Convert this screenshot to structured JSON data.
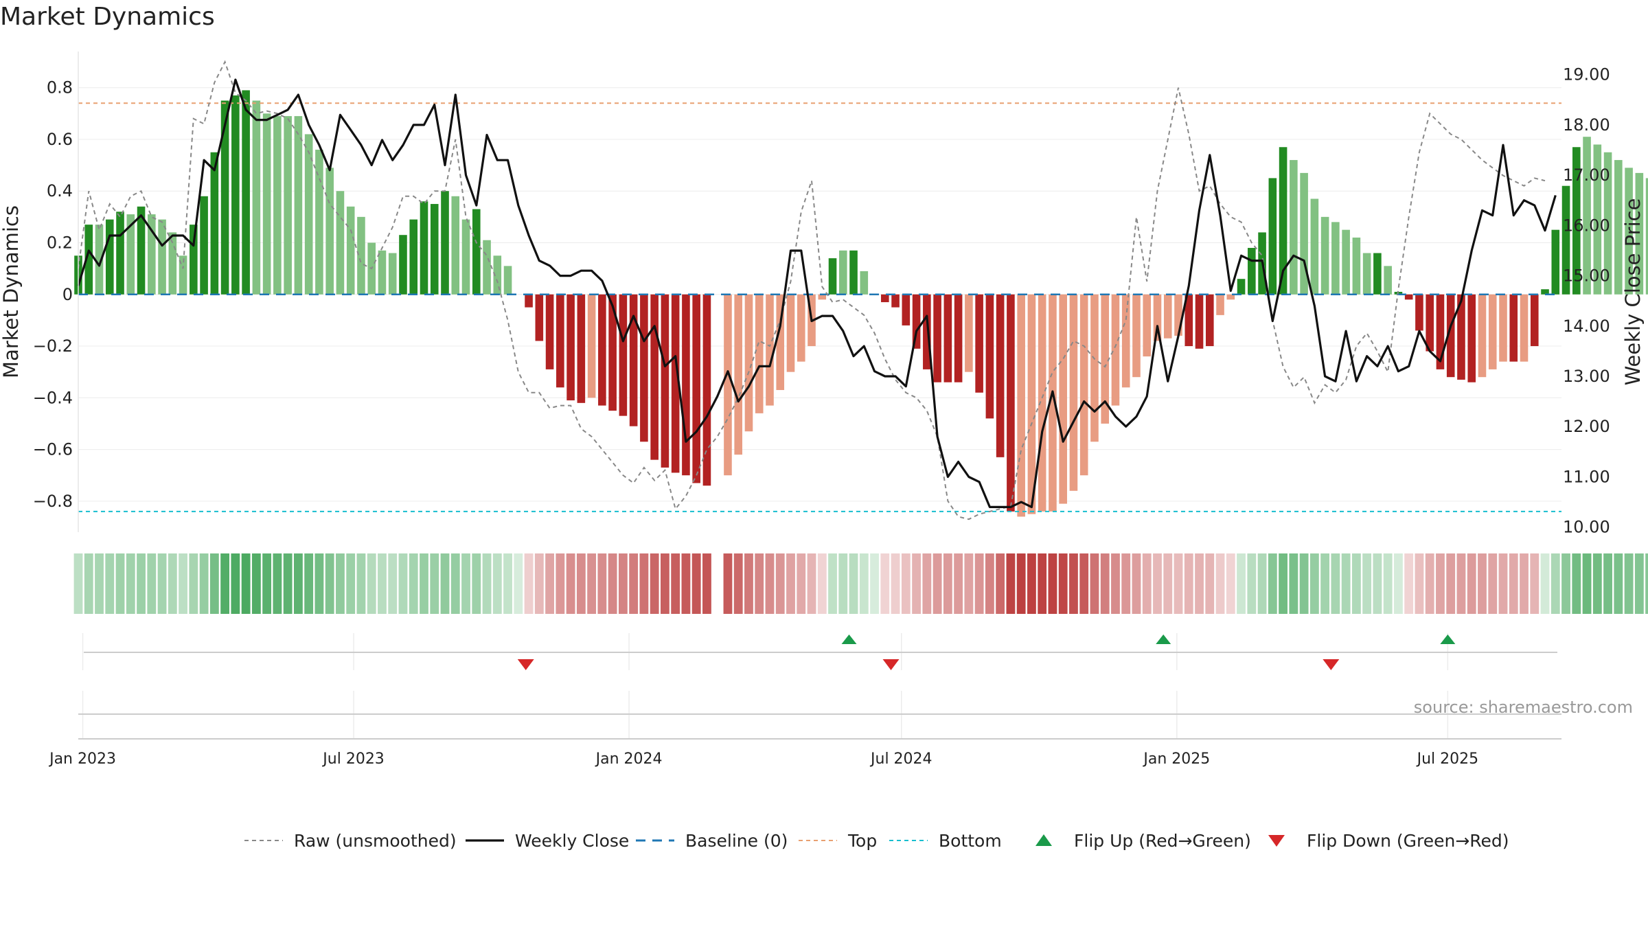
{
  "title": "Market Dynamics",
  "source_note": "source: sharemaestro.com",
  "colors": {
    "strong_green": "#228b22",
    "light_green": "#82c182",
    "strong_red": "#b22222",
    "light_red": "#e89c82",
    "raw_line": "#888888",
    "close_line": "#111111",
    "baseline": "#1f77b4",
    "top": "#e8a070",
    "bottom": "#17becf",
    "flip_up": "#1a9a4a",
    "flip_down": "#d62728"
  },
  "chart_data": {
    "type": "bar",
    "title": "Market Dynamics",
    "ylabel": "Market Dynamics",
    "y2label": "Weekly Close Price",
    "ylim": [
      -0.92,
      0.94
    ],
    "y2lim": [
      9.9,
      19.46
    ],
    "x_range": [
      "2022-12-29",
      "2025-09-15"
    ],
    "yticks": [
      {
        "value": 0.8,
        "label": "0.8"
      },
      {
        "value": 0.6,
        "label": "0.6"
      },
      {
        "value": 0.4,
        "label": "0.4"
      },
      {
        "value": 0.2,
        "label": "0.2"
      },
      {
        "value": 0.0,
        "label": "0"
      },
      {
        "value": -0.2,
        "label": "−0.2"
      },
      {
        "value": -0.4,
        "label": "−0.4"
      },
      {
        "value": -0.6,
        "label": "−0.6"
      },
      {
        "value": -0.8,
        "label": "−0.8"
      }
    ],
    "y2ticks": [
      {
        "value": 19,
        "label": "19.00"
      },
      {
        "value": 18,
        "label": "18.00"
      },
      {
        "value": 17,
        "label": "17.00"
      },
      {
        "value": 16,
        "label": "16.00"
      },
      {
        "value": 15,
        "label": "15.00"
      },
      {
        "value": 14,
        "label": "14.00"
      },
      {
        "value": 13,
        "label": "13.00"
      },
      {
        "value": 12,
        "label": "12.00"
      },
      {
        "value": 11,
        "label": "11.00"
      },
      {
        "value": 10,
        "label": "10.00"
      }
    ],
    "xticks": [
      {
        "date": "2023-01-01",
        "label": "Jan 2023"
      },
      {
        "date": "2023-07-01",
        "label": "Jul 2023"
      },
      {
        "date": "2024-01-01",
        "label": "Jan 2024"
      },
      {
        "date": "2024-07-01",
        "label": "Jul 2024"
      },
      {
        "date": "2025-01-01",
        "label": "Jan 2025"
      },
      {
        "date": "2025-07-01",
        "label": "Jul 2025"
      }
    ],
    "top_level": 0.74,
    "bottom_level": -0.84,
    "grid": true,
    "legend_position": "bottom-center",
    "week_start": "2022-12-29",
    "bar_values": [
      0.15,
      0.27,
      0.27,
      0.29,
      0.32,
      0.31,
      0.34,
      0.31,
      0.29,
      0.24,
      0.15,
      0.27,
      0.38,
      0.55,
      0.75,
      0.77,
      0.79,
      0.75,
      0.7,
      0.69,
      0.69,
      0.69,
      0.62,
      0.56,
      0.49,
      0.4,
      0.34,
      0.3,
      0.2,
      0.17,
      0.16,
      0.23,
      0.29,
      0.36,
      0.35,
      0.4,
      0.38,
      0.29,
      0.33,
      0.21,
      0.15,
      0.11,
      0,
      -0.05,
      -0.18,
      -0.29,
      -0.36,
      -0.41,
      -0.42,
      -0.4,
      -0.43,
      -0.45,
      -0.47,
      -0.51,
      -0.57,
      -0.64,
      -0.67,
      -0.69,
      -0.7,
      -0.73,
      -0.74,
      0,
      -0.7,
      -0.62,
      -0.53,
      -0.46,
      -0.43,
      -0.37,
      -0.3,
      -0.26,
      -0.2,
      -0.02,
      0.14,
      0.17,
      0.17,
      0.09,
      0,
      -0.03,
      -0.05,
      -0.12,
      -0.21,
      -0.29,
      -0.34,
      -0.34,
      -0.34,
      -0.3,
      -0.38,
      -0.48,
      -0.63,
      -0.84,
      -0.86,
      -0.85,
      -0.84,
      -0.84,
      -0.81,
      -0.76,
      -0.7,
      -0.57,
      -0.5,
      -0.43,
      -0.36,
      -0.32,
      -0.24,
      -0.18,
      -0.17,
      -0.16,
      -0.2,
      -0.21,
      -0.2,
      -0.08,
      -0.02,
      0.06,
      0.18,
      0.24,
      0.45,
      0.57,
      0.52,
      0.47,
      0.37,
      0.3,
      0.28,
      0.25,
      0.22,
      0.16,
      0.16,
      0.11,
      0.01,
      -0.02,
      -0.14,
      -0.22,
      -0.29,
      -0.32,
      -0.33,
      -0.34,
      -0.32,
      -0.29,
      -0.26,
      -0.26,
      -0.26,
      -0.2,
      0.02,
      0.25,
      0.42,
      0.57,
      0.61,
      0.58,
      0.55,
      0.52,
      0.49,
      0.47,
      0.45,
      0.43,
      0.41
    ],
    "bar_strength": [
      "strong",
      "strong",
      "light",
      "strong",
      "strong",
      "light",
      "strong",
      "light",
      "light",
      "light",
      "light",
      "strong",
      "strong",
      "strong",
      "strong",
      "strong",
      "strong",
      "light",
      "light",
      "light",
      "light",
      "light",
      "light",
      "light",
      "light",
      "light",
      "light",
      "light",
      "light",
      "light",
      "light",
      "strong",
      "strong",
      "strong",
      "strong",
      "strong",
      "light",
      "light",
      "strong",
      "light",
      "light",
      "light",
      "light",
      "strong",
      "strong",
      "strong",
      "strong",
      "strong",
      "strong",
      "light",
      "strong",
      "strong",
      "strong",
      "strong",
      "strong",
      "strong",
      "strong",
      "strong",
      "strong",
      "strong",
      "strong",
      "light",
      "light",
      "light",
      "light",
      "light",
      "light",
      "light",
      "light",
      "light",
      "light",
      "light",
      "strong",
      "light",
      "strong",
      "light",
      "light",
      "strong",
      "strong",
      "strong",
      "strong",
      "strong",
      "strong",
      "strong",
      "strong",
      "light",
      "strong",
      "strong",
      "strong",
      "strong",
      "light",
      "light",
      "light",
      "light",
      "light",
      "light",
      "light",
      "light",
      "light",
      "light",
      "light",
      "light",
      "light",
      "light",
      "light",
      "light",
      "strong",
      "strong",
      "strong",
      "light",
      "light",
      "strong",
      "strong",
      "strong",
      "strong",
      "strong",
      "light",
      "light",
      "light",
      "light",
      "light",
      "light",
      "light",
      "light",
      "strong",
      "light",
      "strong",
      "strong",
      "strong",
      "strong",
      "strong",
      "strong",
      "strong",
      "strong",
      "light",
      "light",
      "light",
      "strong",
      "light",
      "strong",
      "strong",
      "strong",
      "strong",
      "strong",
      "light",
      "light",
      "light",
      "light",
      "light",
      "light",
      "light",
      "light"
    ],
    "raw_values": [
      0.1,
      0.4,
      0.25,
      0.35,
      0.3,
      0.38,
      0.4,
      0.3,
      0.28,
      0.2,
      0.1,
      0.68,
      0.66,
      0.82,
      0.9,
      0.78,
      0.75,
      0.7,
      0.71,
      0.7,
      0.68,
      0.62,
      0.55,
      0.45,
      0.35,
      0.3,
      0.25,
      0.12,
      0.1,
      0.18,
      0.26,
      0.38,
      0.38,
      0.35,
      0.4,
      0.4,
      0.6,
      0.3,
      0.2,
      0.15,
      0.05,
      -0.1,
      -0.3,
      -0.38,
      -0.38,
      -0.44,
      -0.43,
      -0.43,
      -0.52,
      -0.55,
      -0.6,
      -0.65,
      -0.7,
      -0.73,
      -0.67,
      -0.72,
      -0.68,
      -0.83,
      -0.78,
      -0.7,
      -0.6,
      -0.55,
      -0.48,
      -0.4,
      -0.3,
      -0.18,
      -0.2,
      -0.1,
      0.05,
      0.32,
      0.44,
      0.03,
      -0.03,
      -0.02,
      -0.05,
      -0.08,
      -0.15,
      -0.25,
      -0.33,
      -0.38,
      -0.4,
      -0.45,
      -0.55,
      -0.8,
      -0.86,
      -0.87,
      -0.85,
      -0.84,
      -0.83,
      -0.82,
      -0.6,
      -0.5,
      -0.4,
      -0.3,
      -0.25,
      -0.18,
      -0.2,
      -0.25,
      -0.28,
      -0.2,
      -0.1,
      0.3,
      0.05,
      0.4,
      0.6,
      0.8,
      0.62,
      0.4,
      0.42,
      0.35,
      0.3,
      0.28,
      0.2,
      0.15,
      -0.1,
      -0.28,
      -0.36,
      -0.32,
      -0.42,
      -0.35,
      -0.38,
      -0.33,
      -0.2,
      -0.15,
      -0.22,
      -0.3,
      0.02,
      0.3,
      0.55,
      0.7,
      0.66,
      0.62,
      0.6,
      0.56,
      0.52,
      0.49,
      0.46,
      0.44,
      0.42,
      0.45,
      0.44
    ],
    "close_dates": [
      "2022-12-29",
      "2023-01-05",
      "2023-01-12",
      "2023-01-19",
      "2023-01-26",
      "2023-02-09",
      "2023-02-23",
      "2023-03-02",
      "2023-03-09",
      "2023-03-16",
      "2023-03-23",
      "2023-03-30",
      "2023-04-06",
      "2023-04-13",
      "2023-04-20",
      "2023-04-27",
      "2023-05-04",
      "2023-05-11",
      "2023-05-18",
      "2023-05-25",
      "2023-06-01",
      "2023-06-08",
      "2023-06-15",
      "2023-06-22",
      "2023-06-29",
      "2023-07-06",
      "2023-07-13",
      "2023-07-20",
      "2023-07-27",
      "2023-08-03",
      "2023-08-10",
      "2023-08-17",
      "2023-08-24",
      "2023-08-31",
      "2023-09-07",
      "2023-09-14",
      "2023-09-21",
      "2023-09-28",
      "2023-10-05",
      "2023-10-12",
      "2023-10-19",
      "2023-10-26",
      "2023-11-02",
      "2023-11-09",
      "2023-11-16",
      "2023-11-23",
      "2023-11-30",
      "2023-12-07",
      "2023-12-14",
      "2023-12-21",
      "2023-12-28",
      "2024-01-04",
      "2024-01-11",
      "2024-01-18",
      "2024-01-25",
      "2024-02-01",
      "2024-02-08",
      "2024-02-15",
      "2024-02-22",
      "2024-02-29",
      "2024-03-07",
      "2024-03-14",
      "2024-03-21",
      "2024-03-28",
      "2024-04-04",
      "2024-04-11",
      "2024-04-18",
      "2024-04-25",
      "2024-05-02",
      "2024-05-09",
      "2024-05-16",
      "2024-05-23",
      "2024-05-30",
      "2024-06-06",
      "2024-06-13",
      "2024-06-20",
      "2024-06-27",
      "2024-07-04",
      "2024-07-11",
      "2024-07-18",
      "2024-07-25",
      "2024-08-01",
      "2024-08-08",
      "2024-08-15",
      "2024-08-22",
      "2024-08-29",
      "2024-09-05",
      "2024-09-12",
      "2024-09-19",
      "2024-09-26",
      "2024-10-03",
      "2024-10-10",
      "2024-10-17",
      "2024-10-24",
      "2024-10-31",
      "2024-11-07",
      "2024-11-14",
      "2024-11-21",
      "2024-11-28",
      "2024-12-05",
      "2024-12-12",
      "2024-12-19",
      "2024-12-26",
      "2025-01-02",
      "2025-01-09",
      "2025-01-16",
      "2025-01-23",
      "2025-01-30",
      "2025-02-06",
      "2025-02-13",
      "2025-02-20",
      "2025-02-27",
      "2025-03-06",
      "2025-03-13",
      "2025-03-20",
      "2025-03-27",
      "2025-04-03",
      "2025-04-10",
      "2025-04-17",
      "2025-04-24",
      "2025-05-01",
      "2025-05-08",
      "2025-05-15",
      "2025-05-22",
      "2025-05-29",
      "2025-06-05",
      "2025-06-12",
      "2025-06-19",
      "2025-06-26",
      "2025-07-03",
      "2025-07-10",
      "2025-07-17",
      "2025-07-24",
      "2025-07-31",
      "2025-08-07",
      "2025-08-14",
      "2025-08-21",
      "2025-08-28",
      "2025-09-04",
      "2025-09-11"
    ],
    "close_values": [
      14.8,
      15.5,
      15.2,
      15.8,
      15.8,
      16.2,
      15.6,
      15.8,
      15.8,
      15.6,
      17.3,
      17.1,
      18.0,
      18.9,
      18.3,
      18.1,
      18.1,
      18.2,
      18.3,
      18.6,
      18.0,
      17.6,
      17.1,
      18.2,
      17.9,
      17.6,
      17.2,
      17.7,
      17.3,
      17.6,
      18.0,
      18.0,
      18.4,
      17.2,
      18.6,
      17.0,
      16.4,
      17.8,
      17.3,
      17.3,
      16.4,
      15.8,
      15.3,
      15.2,
      15.0,
      15.0,
      15.1,
      15.1,
      14.9,
      14.4,
      13.7,
      14.2,
      13.7,
      14.0,
      13.2,
      13.4,
      11.7,
      11.9,
      12.2,
      12.6,
      13.1,
      12.5,
      12.8,
      13.2,
      13.2,
      14.0,
      15.5,
      15.5,
      14.1,
      14.2,
      14.2,
      13.9,
      13.4,
      13.6,
      13.1,
      13.0,
      13.0,
      12.8,
      13.9,
      14.2,
      11.8,
      11.0,
      11.3,
      11.0,
      10.9,
      10.4,
      10.4,
      10.4,
      10.5,
      10.4,
      11.9,
      12.7,
      11.7,
      12.1,
      12.5,
      12.3,
      12.5,
      12.2,
      12.0,
      12.2,
      12.6,
      14.0,
      12.9,
      13.8,
      14.8,
      16.3,
      17.4,
      16.2,
      14.7,
      15.4,
      15.3,
      15.3,
      14.1,
      15.1,
      15.4,
      15.3,
      14.4,
      13.0,
      12.9,
      13.9,
      12.9,
      13.4,
      13.2,
      13.6,
      13.1,
      13.2,
      13.9,
      13.5,
      13.3,
      14.0,
      14.5,
      15.5,
      16.3,
      16.2,
      17.6,
      16.2,
      16.5,
      16.4,
      15.9,
      16.6,
      16.2,
      16.7,
      16.4
    ],
    "flip_up_dates": [
      "2024-05-27",
      "2024-12-23",
      "2025-07-01"
    ],
    "flip_down_dates": [
      "2023-10-24",
      "2024-06-24",
      "2025-04-14"
    ],
    "legend": [
      {
        "key": "raw",
        "label": "Raw (unsmoothed)"
      },
      {
        "key": "close",
        "label": "Weekly Close"
      },
      {
        "key": "baseline",
        "label": "Baseline (0)"
      },
      {
        "key": "top",
        "label": "Top"
      },
      {
        "key": "bottom",
        "label": "Bottom"
      },
      {
        "key": "flip_up",
        "label": "Flip Up (Red→Green)"
      },
      {
        "key": "flip_down",
        "label": "Flip Down (Green→Red)"
      }
    ]
  }
}
